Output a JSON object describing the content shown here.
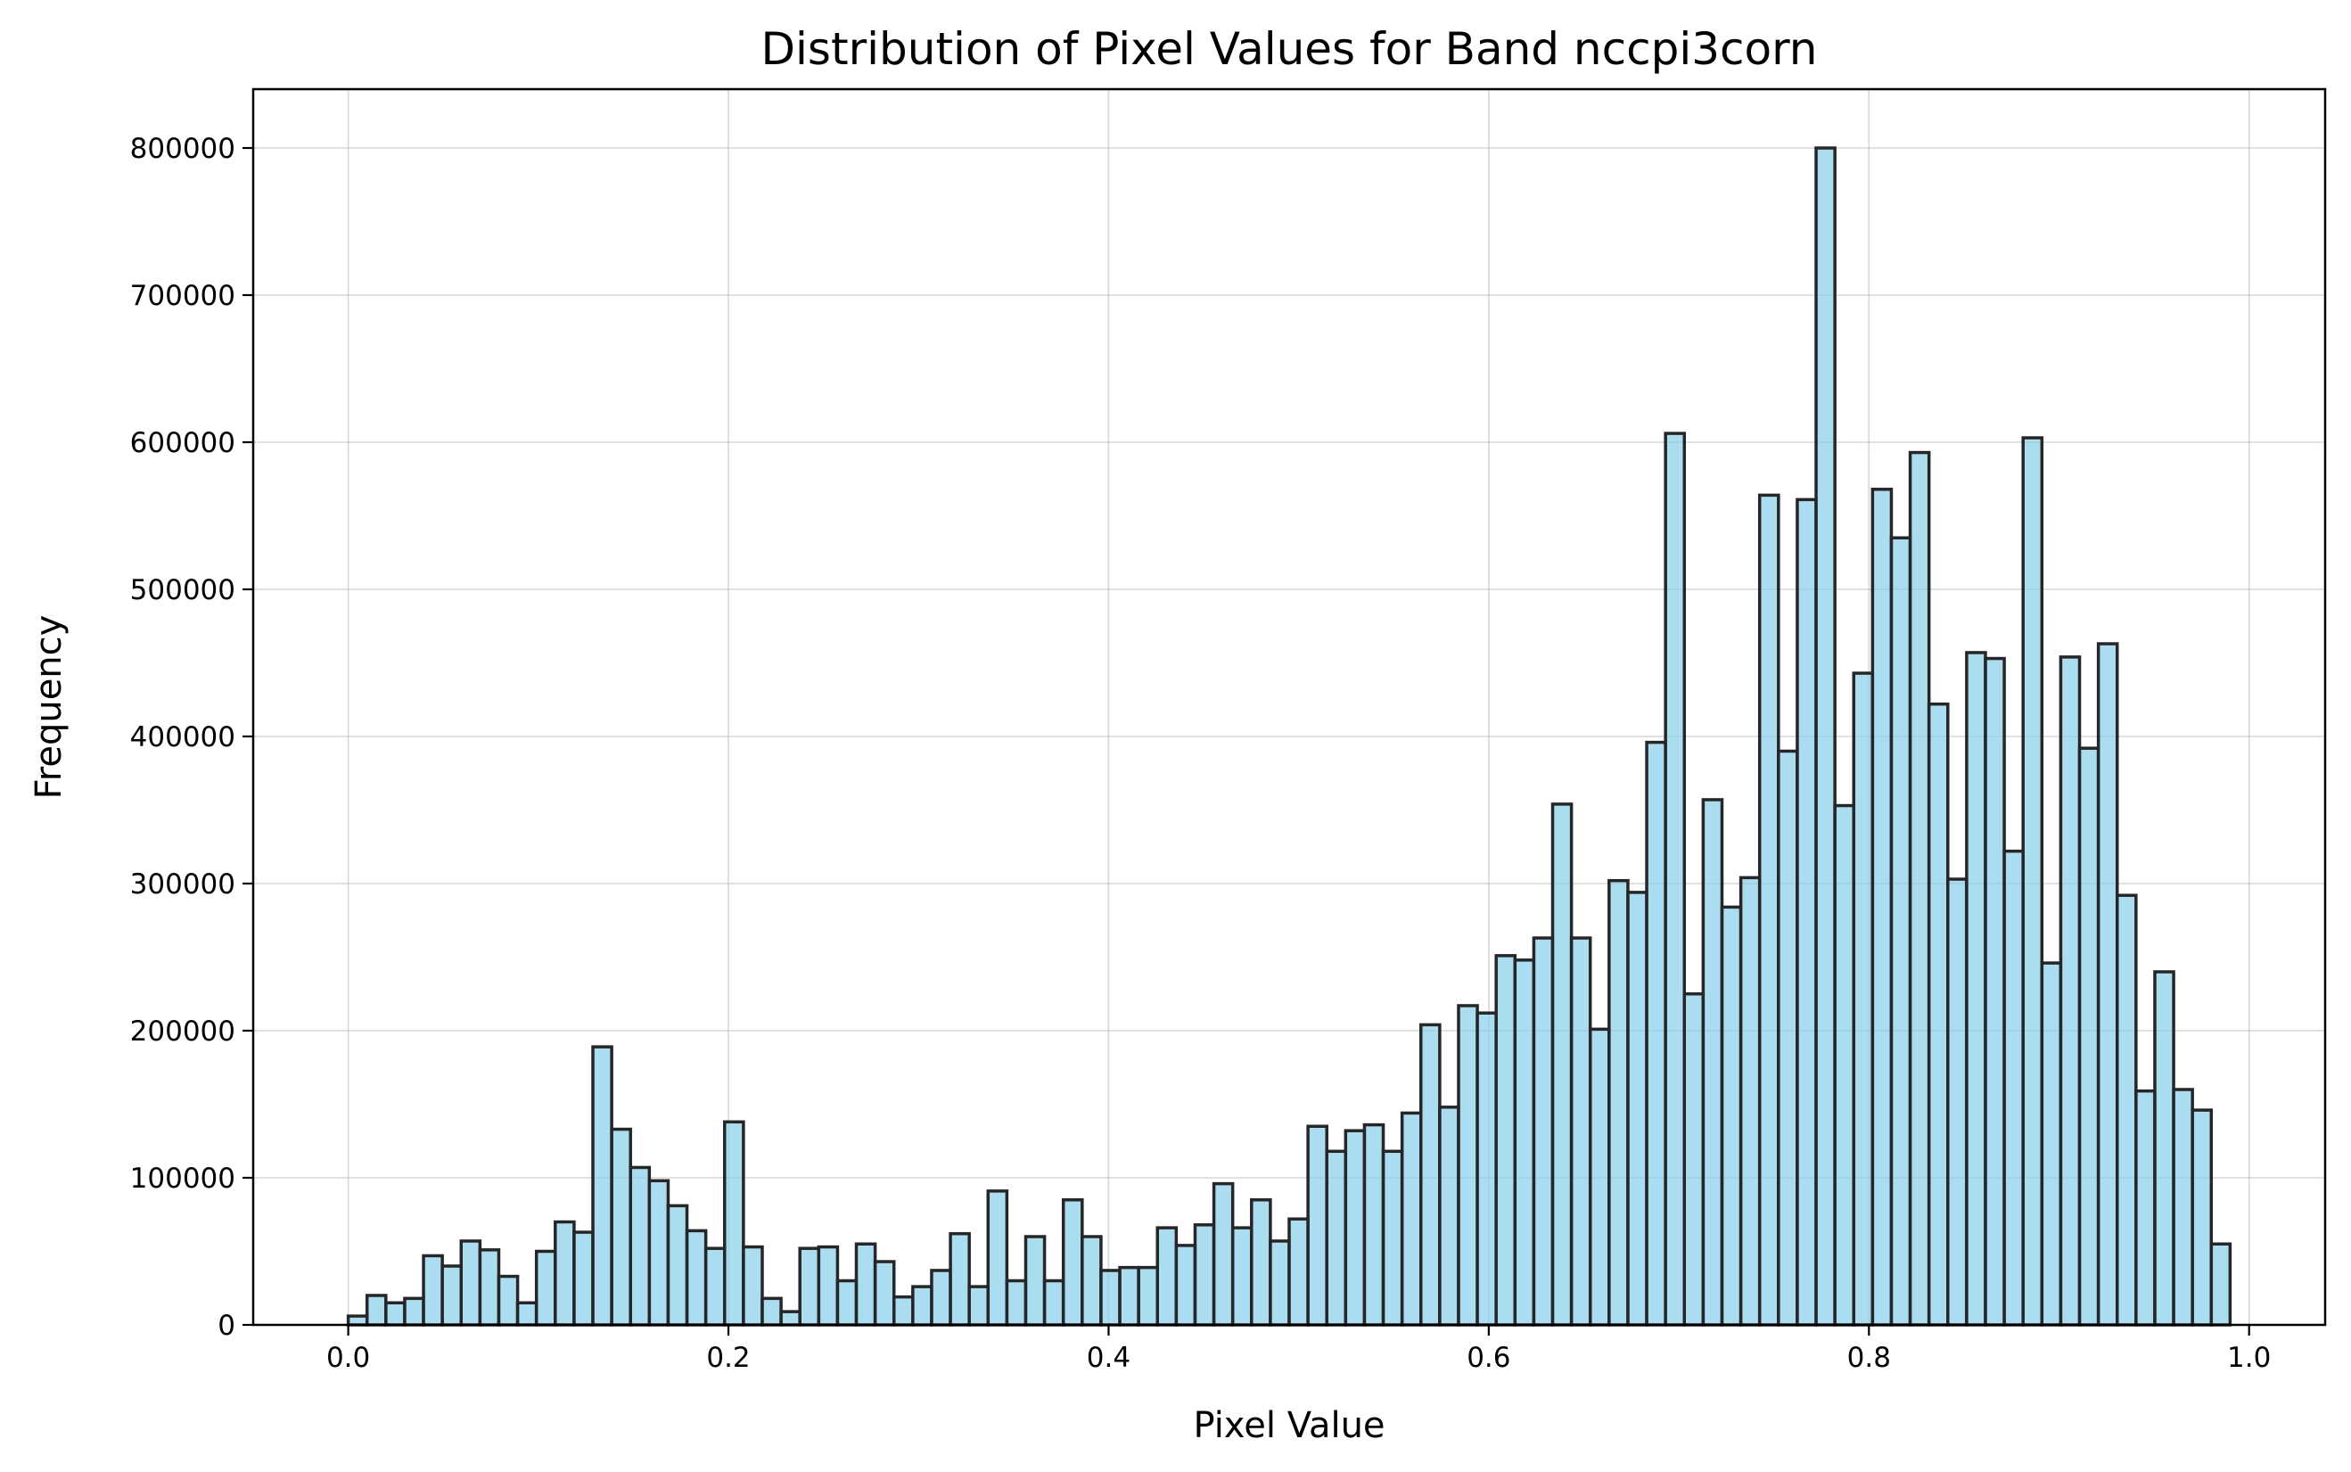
{
  "chart_data": {
    "type": "bar",
    "title": "Distribution of Pixel Values for Band nccpi3corn",
    "xlabel": "Pixel Value",
    "ylabel": "Frequency",
    "xlim": [
      -0.05,
      1.04
    ],
    "ylim": [
      0,
      840000
    ],
    "xticks": [
      0.0,
      0.2,
      0.4,
      0.6,
      0.8,
      1.0
    ],
    "xtick_labels": [
      "0.0",
      "0.2",
      "0.4",
      "0.6",
      "0.8",
      "1.0"
    ],
    "yticks": [
      0,
      100000,
      200000,
      300000,
      400000,
      500000,
      600000,
      700000,
      800000
    ],
    "ytick_labels": [
      "0",
      "100000",
      "200000",
      "300000",
      "400000",
      "500000",
      "600000",
      "700000",
      "800000"
    ],
    "grid": true,
    "bar_color": "#87ceeb",
    "edge_color": "#262626",
    "bin_start": 0.0,
    "bin_width": 0.0099,
    "values": [
      6000,
      20000,
      15000,
      18000,
      47000,
      40000,
      57000,
      51000,
      33000,
      15000,
      50000,
      70000,
      63000,
      189000,
      133000,
      107000,
      98000,
      81000,
      64000,
      52000,
      138000,
      53000,
      18000,
      9000,
      52000,
      53000,
      30000,
      55000,
      43000,
      19000,
      26000,
      37000,
      62000,
      26000,
      91000,
      30000,
      60000,
      30000,
      85000,
      60000,
      37000,
      39000,
      39000,
      66000,
      54000,
      68000,
      96000,
      66000,
      85000,
      57000,
      72000,
      135000,
      118000,
      132000,
      136000,
      118000,
      144000,
      204000,
      148000,
      217000,
      212000,
      251000,
      248000,
      263000,
      354000,
      263000,
      201000,
      302000,
      294000,
      396000,
      606000,
      225000,
      357000,
      284000,
      304000,
      564000,
      390000,
      561000,
      800000,
      353000,
      443000,
      568000,
      535000,
      593000,
      422000,
      303000,
      457000,
      453000,
      322000,
      603000,
      246000,
      454000,
      392000,
      463000,
      292000,
      159000,
      240000,
      160000,
      146000,
      55000
    ]
  }
}
